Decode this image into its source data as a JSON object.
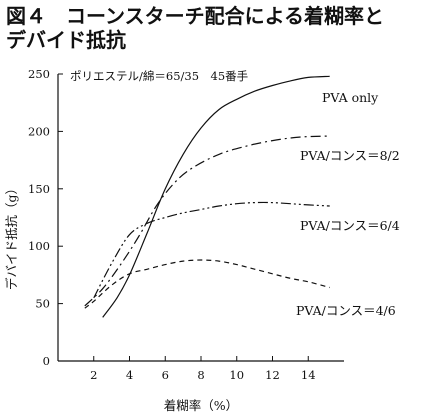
{
  "figure": {
    "title_line1": "図４　コーンスターチ配合による着糊率と",
    "title_line2": "デバイド抵抗"
  },
  "chart_data": {
    "type": "line",
    "xlabel": "着糊率（%）",
    "ylabel": "デバイド抵抗（g）",
    "note": "ポリエステル/綿＝65/35　45番手",
    "xlim": [
      0,
      16
    ],
    "ylim": [
      0,
      250
    ],
    "xticks": [
      2,
      4,
      6,
      8,
      10,
      12,
      14
    ],
    "yticks": [
      0,
      50,
      100,
      150,
      200,
      250
    ],
    "grid": false,
    "legend": "inline labels near line ends",
    "series": [
      {
        "name": "PVA only",
        "style": "solid",
        "x": [
          2.5,
          3.3,
          4.0,
          5.0,
          6.0,
          7.0,
          8.0,
          9.0,
          10.0,
          11.0,
          12.0,
          13.0,
          14.0,
          15.2
        ],
        "y": [
          38,
          55,
          75,
          112,
          150,
          180,
          203,
          219,
          228,
          235,
          240,
          244,
          247,
          248
        ]
      },
      {
        "name": "PVA/コンス＝8/2",
        "style": "dash-dot",
        "x": [
          1.5,
          2.5,
          3.5,
          4.5,
          5.5,
          6.5,
          7.5,
          9.0,
          10.5,
          12.0,
          13.5,
          15.2
        ],
        "y": [
          48,
          63,
          84,
          108,
          135,
          155,
          168,
          180,
          187,
          192,
          195,
          196
        ]
      },
      {
        "name": "PVA/コンス＝6/4",
        "style": "dash-dot-dot",
        "x": [
          2.0,
          3.0,
          4.0,
          5.0,
          6.0,
          7.0,
          8.0,
          9.0,
          10.0,
          11.0,
          12.0,
          13.0,
          14.0,
          15.2
        ],
        "y": [
          55,
          85,
          110,
          120,
          125,
          129,
          132,
          135,
          137,
          138,
          138,
          137,
          136,
          135
        ]
      },
      {
        "name": "PVA/コンス＝4/6",
        "style": "dashed",
        "x": [
          1.5,
          2.0,
          3.0,
          4.0,
          5.0,
          6.0,
          7.0,
          8.0,
          9.0,
          10.0,
          11.0,
          12.0,
          13.0,
          14.0,
          15.2
        ],
        "y": [
          46,
          52,
          66,
          76,
          80,
          84,
          87,
          88,
          87,
          84,
          80,
          76,
          72,
          69,
          64
        ]
      }
    ]
  }
}
